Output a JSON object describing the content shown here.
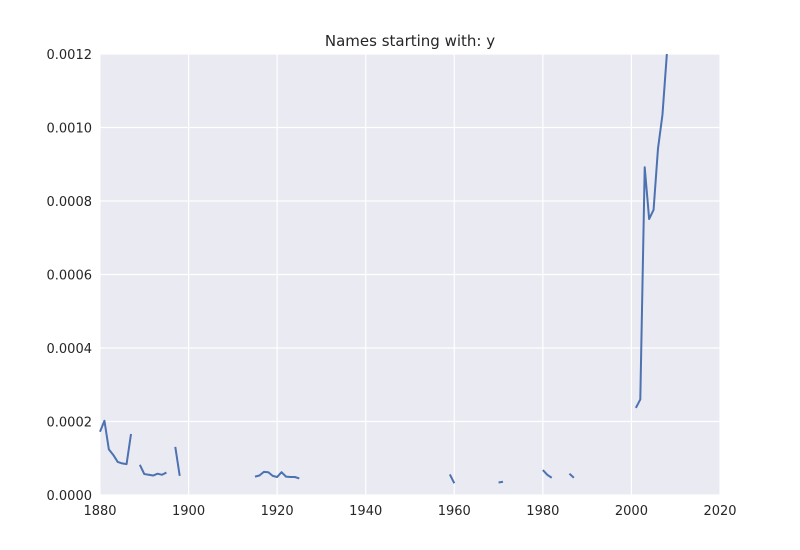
{
  "chart_data": {
    "type": "line",
    "title": "Names starting with: y",
    "xlabel": "",
    "ylabel": "",
    "xlim": [
      1880,
      2020
    ],
    "ylim": [
      0,
      0.0012
    ],
    "x_ticks": [
      "1880",
      "1900",
      "1920",
      "1940",
      "1960",
      "1980",
      "2000",
      "2020"
    ],
    "y_ticks": [
      "0.0000",
      "0.0002",
      "0.0004",
      "0.0006",
      "0.0008",
      "0.0010",
      "0.0012"
    ],
    "grid": true,
    "style": {
      "background": "#eaeaf2",
      "grid_color": "#ffffff",
      "line_color": "#4c72b0"
    },
    "series": [
      {
        "segments": [
          [
            [
              1880,
              0.000172
            ],
            [
              1881,
              0.000202
            ],
            [
              1882,
              0.000124
            ],
            [
              1883,
              0.000109
            ],
            [
              1884,
              9e-05
            ],
            [
              1885,
              8.6e-05
            ],
            [
              1886,
              8.4e-05
            ],
            [
              1887,
              0.000166
            ]
          ],
          [
            [
              1889,
              8.2e-05
            ],
            [
              1890,
              5.7e-05
            ],
            [
              1891,
              5.5e-05
            ],
            [
              1892,
              5.3e-05
            ],
            [
              1893,
              5.8e-05
            ],
            [
              1894,
              5.5e-05
            ],
            [
              1895,
              6.1e-05
            ]
          ],
          [
            [
              1897,
              0.000131
            ],
            [
              1898,
              5.2e-05
            ]
          ],
          [
            [
              1915,
              5e-05
            ],
            [
              1916,
              5.3e-05
            ],
            [
              1917,
              6.3e-05
            ],
            [
              1918,
              6.2e-05
            ],
            [
              1919,
              5.2e-05
            ],
            [
              1920,
              4.9e-05
            ],
            [
              1921,
              6.2e-05
            ],
            [
              1922,
              5e-05
            ],
            [
              1923,
              4.9e-05
            ],
            [
              1924,
              4.9e-05
            ],
            [
              1925,
              4.5e-05
            ]
          ],
          [
            [
              1959,
              5.6e-05
            ],
            [
              1960,
              3.2e-05
            ]
          ],
          [
            [
              1970,
              3.4e-05
            ],
            [
              1971,
              3.6e-05
            ]
          ],
          [
            [
              1980,
              6.8e-05
            ],
            [
              1981,
              5.5e-05
            ],
            [
              1982,
              4.7e-05
            ]
          ],
          [
            [
              1986,
              5.8e-05
            ],
            [
              1987,
              4.7e-05
            ]
          ],
          [
            [
              2001,
              0.000237
            ],
            [
              2002,
              0.00026
            ],
            [
              2003,
              0.000892
            ],
            [
              2004,
              0.000751
            ],
            [
              2005,
              0.000776
            ],
            [
              2006,
              0.000943
            ],
            [
              2007,
              0.001034
            ],
            [
              2008,
              0.0012
            ]
          ]
        ]
      }
    ]
  }
}
